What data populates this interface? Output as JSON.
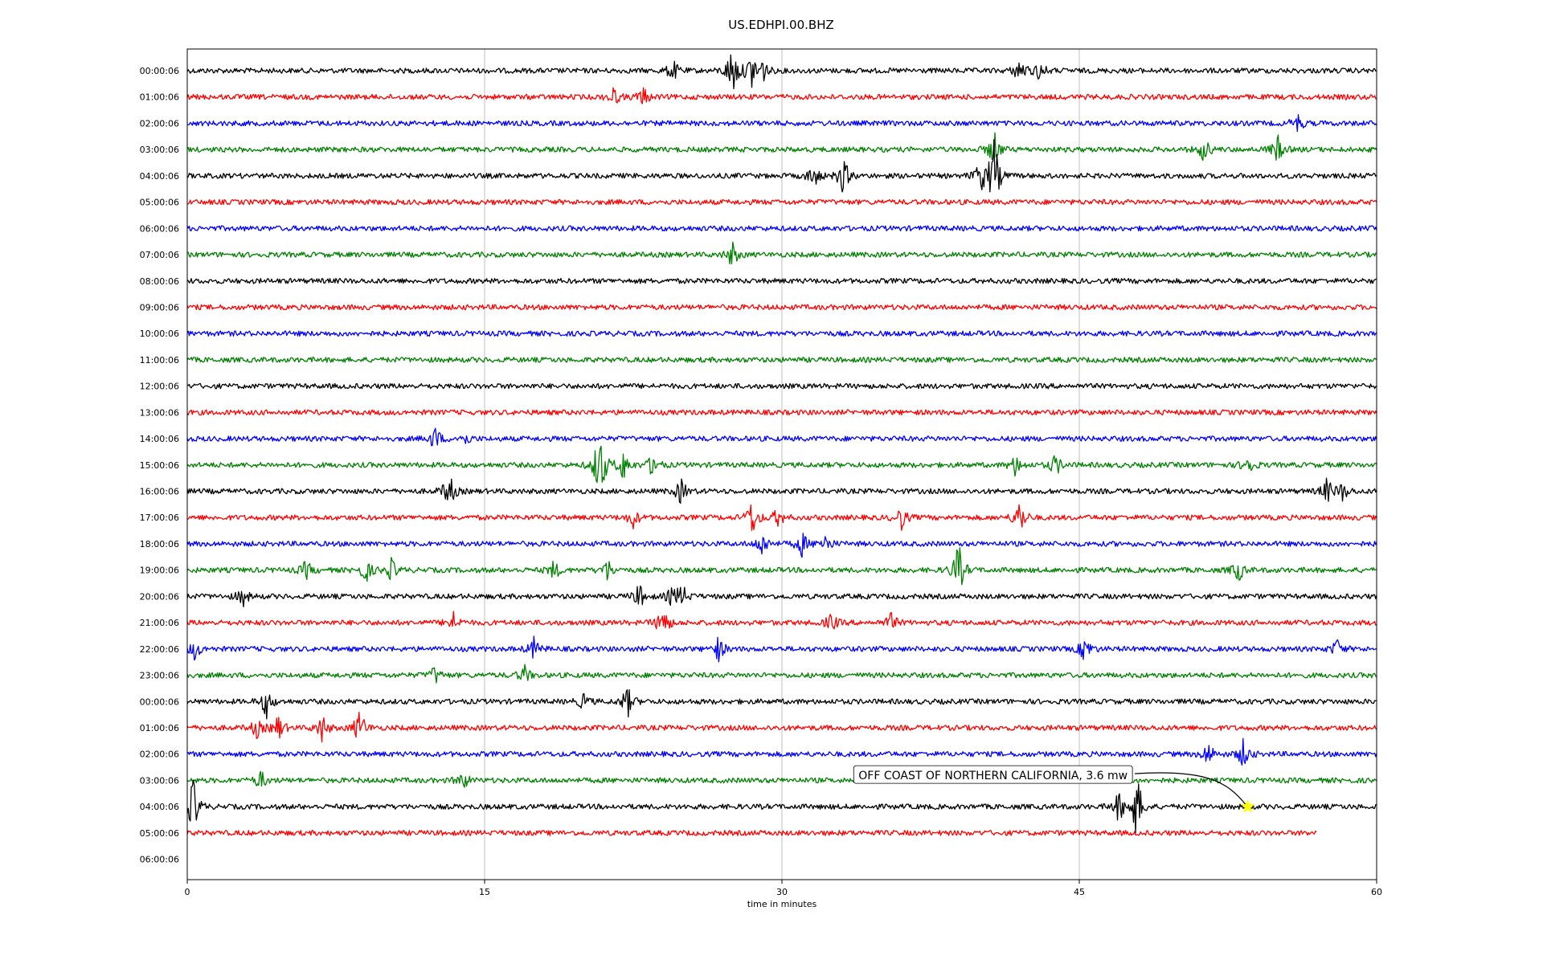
{
  "chart_data": {
    "type": "line",
    "title": "US.EDHPI.00.BHZ",
    "xlabel": "time in minutes",
    "ylabel": "",
    "xlim": [
      0,
      60
    ],
    "xticks": [
      0,
      15,
      30,
      45,
      60
    ],
    "grid": "vertical",
    "color_cycle": [
      "#000000",
      "#ff0000",
      "#0000ff",
      "#008000"
    ],
    "rows": [
      {
        "label": "00:00:06",
        "events": [
          {
            "t": 24.5,
            "amp": 0.35
          },
          {
            "t": 27.5,
            "amp": 0.9
          },
          {
            "t": 28.5,
            "amp": 0.6
          },
          {
            "t": 29.0,
            "amp": 0.4
          },
          {
            "t": 42.0,
            "amp": 0.4
          },
          {
            "t": 43.0,
            "amp": 0.3
          }
        ]
      },
      {
        "label": "01:00:06",
        "events": [
          {
            "t": 21.5,
            "amp": 0.3
          },
          {
            "t": 23.0,
            "amp": 0.3
          }
        ]
      },
      {
        "label": "02:00:06",
        "events": [
          {
            "t": 56.0,
            "amp": 0.3
          }
        ]
      },
      {
        "label": "03:00:06",
        "events": [
          {
            "t": 40.7,
            "amp": 0.6
          },
          {
            "t": 51.3,
            "amp": 0.4
          },
          {
            "t": 55.0,
            "amp": 0.45
          }
        ]
      },
      {
        "label": "04:00:06",
        "events": [
          {
            "t": 31.6,
            "amp": 0.4
          },
          {
            "t": 33.1,
            "amp": 0.6
          },
          {
            "t": 40.7,
            "amp": 1.2
          },
          {
            "t": 40.0,
            "amp": 0.5
          }
        ]
      },
      {
        "label": "05:00:06",
        "events": []
      },
      {
        "label": "06:00:06",
        "events": []
      },
      {
        "label": "07:00:06",
        "events": [
          {
            "t": 27.5,
            "amp": 0.4
          }
        ]
      },
      {
        "label": "08:00:06",
        "events": []
      },
      {
        "label": "09:00:06",
        "events": []
      },
      {
        "label": "10:00:06",
        "events": []
      },
      {
        "label": "11:00:06",
        "events": []
      },
      {
        "label": "12:00:06",
        "events": []
      },
      {
        "label": "13:00:06",
        "events": []
      },
      {
        "label": "14:00:06",
        "events": [
          {
            "t": 12.5,
            "amp": 0.4
          },
          {
            "t": 14.0,
            "amp": 0.2
          }
        ]
      },
      {
        "label": "15:00:06",
        "events": [
          {
            "t": 20.8,
            "amp": 1.3
          },
          {
            "t": 22.0,
            "amp": 0.5
          },
          {
            "t": 23.5,
            "amp": 0.4
          },
          {
            "t": 41.8,
            "amp": 0.35
          },
          {
            "t": 43.8,
            "amp": 0.35
          },
          {
            "t": 53.5,
            "amp": 0.35
          }
        ]
      },
      {
        "label": "16:00:06",
        "events": [
          {
            "t": 13.2,
            "amp": 0.6
          },
          {
            "t": 24.9,
            "amp": 0.4
          },
          {
            "t": 57.5,
            "amp": 0.4
          },
          {
            "t": 58.3,
            "amp": 0.3
          }
        ]
      },
      {
        "label": "17:00:06",
        "events": [
          {
            "t": 22.5,
            "amp": 0.3
          },
          {
            "t": 28.5,
            "amp": 0.6
          },
          {
            "t": 29.8,
            "amp": 0.3
          },
          {
            "t": 36.0,
            "amp": 0.4
          },
          {
            "t": 42.0,
            "amp": 0.6
          }
        ]
      },
      {
        "label": "18:00:06",
        "events": [
          {
            "t": 29.0,
            "amp": 0.4
          },
          {
            "t": 31.0,
            "amp": 0.4
          },
          {
            "t": 32.2,
            "amp": 0.3
          }
        ]
      },
      {
        "label": "19:00:06",
        "events": [
          {
            "t": 6.0,
            "amp": 0.3
          },
          {
            "t": 9.0,
            "amp": 0.4
          },
          {
            "t": 10.3,
            "amp": 0.35
          },
          {
            "t": 18.5,
            "amp": 0.3
          },
          {
            "t": 21.2,
            "amp": 0.35
          },
          {
            "t": 38.9,
            "amp": 0.9
          },
          {
            "t": 53.0,
            "amp": 0.4
          }
        ]
      },
      {
        "label": "20:00:06",
        "events": [
          {
            "t": 2.8,
            "amp": 0.3
          },
          {
            "t": 22.8,
            "amp": 0.4
          },
          {
            "t": 24.5,
            "amp": 0.35
          },
          {
            "t": 25.0,
            "amp": 0.3
          }
        ]
      },
      {
        "label": "21:00:06",
        "events": [
          {
            "t": 13.4,
            "amp": 0.35
          },
          {
            "t": 24.0,
            "amp": 0.6
          },
          {
            "t": 32.5,
            "amp": 0.3
          },
          {
            "t": 35.5,
            "amp": 0.3
          }
        ]
      },
      {
        "label": "22:00:06",
        "events": [
          {
            "t": 0.4,
            "amp": 0.35
          },
          {
            "t": 17.5,
            "amp": 0.35
          },
          {
            "t": 26.8,
            "amp": 0.4
          },
          {
            "t": 45.3,
            "amp": 0.45
          },
          {
            "t": 58.0,
            "amp": 0.3
          }
        ]
      },
      {
        "label": "23:00:06",
        "events": [
          {
            "t": 12.5,
            "amp": 0.3
          },
          {
            "t": 17.0,
            "amp": 0.3
          }
        ]
      },
      {
        "label": "00:00:06",
        "events": [
          {
            "t": 4.0,
            "amp": 0.5
          },
          {
            "t": 20.0,
            "amp": 0.25
          },
          {
            "t": 22.2,
            "amp": 0.5
          }
        ]
      },
      {
        "label": "01:00:06",
        "events": [
          {
            "t": 3.5,
            "amp": 0.3
          },
          {
            "t": 4.6,
            "amp": 0.4
          },
          {
            "t": 6.8,
            "amp": 0.45
          },
          {
            "t": 8.7,
            "amp": 0.6
          }
        ]
      },
      {
        "label": "02:00:06",
        "events": [
          {
            "t": 51.5,
            "amp": 0.4
          },
          {
            "t": 53.3,
            "amp": 0.5
          }
        ]
      },
      {
        "label": "03:00:06",
        "events": [
          {
            "t": 3.7,
            "amp": 0.3
          },
          {
            "t": 13.9,
            "amp": 0.3
          }
        ]
      },
      {
        "label": "04:00:06",
        "events": [
          {
            "t": 0.3,
            "amp": 0.9
          },
          {
            "t": 47.0,
            "amp": 0.5
          },
          {
            "t": 47.9,
            "amp": 1.1
          }
        ]
      },
      {
        "label": "05:00:06",
        "events": [],
        "end": 57.0
      },
      {
        "label": "06:00:06",
        "events": [],
        "end": 0
      }
    ],
    "annotation": {
      "text": "OFF COAST OF NORTHERN CALIFORNIA, 3.6 mw",
      "row": 28,
      "t": 53.5,
      "box_t": 33.7,
      "arrow_start_t": 47.8,
      "marker_color": "#ffff00"
    }
  }
}
